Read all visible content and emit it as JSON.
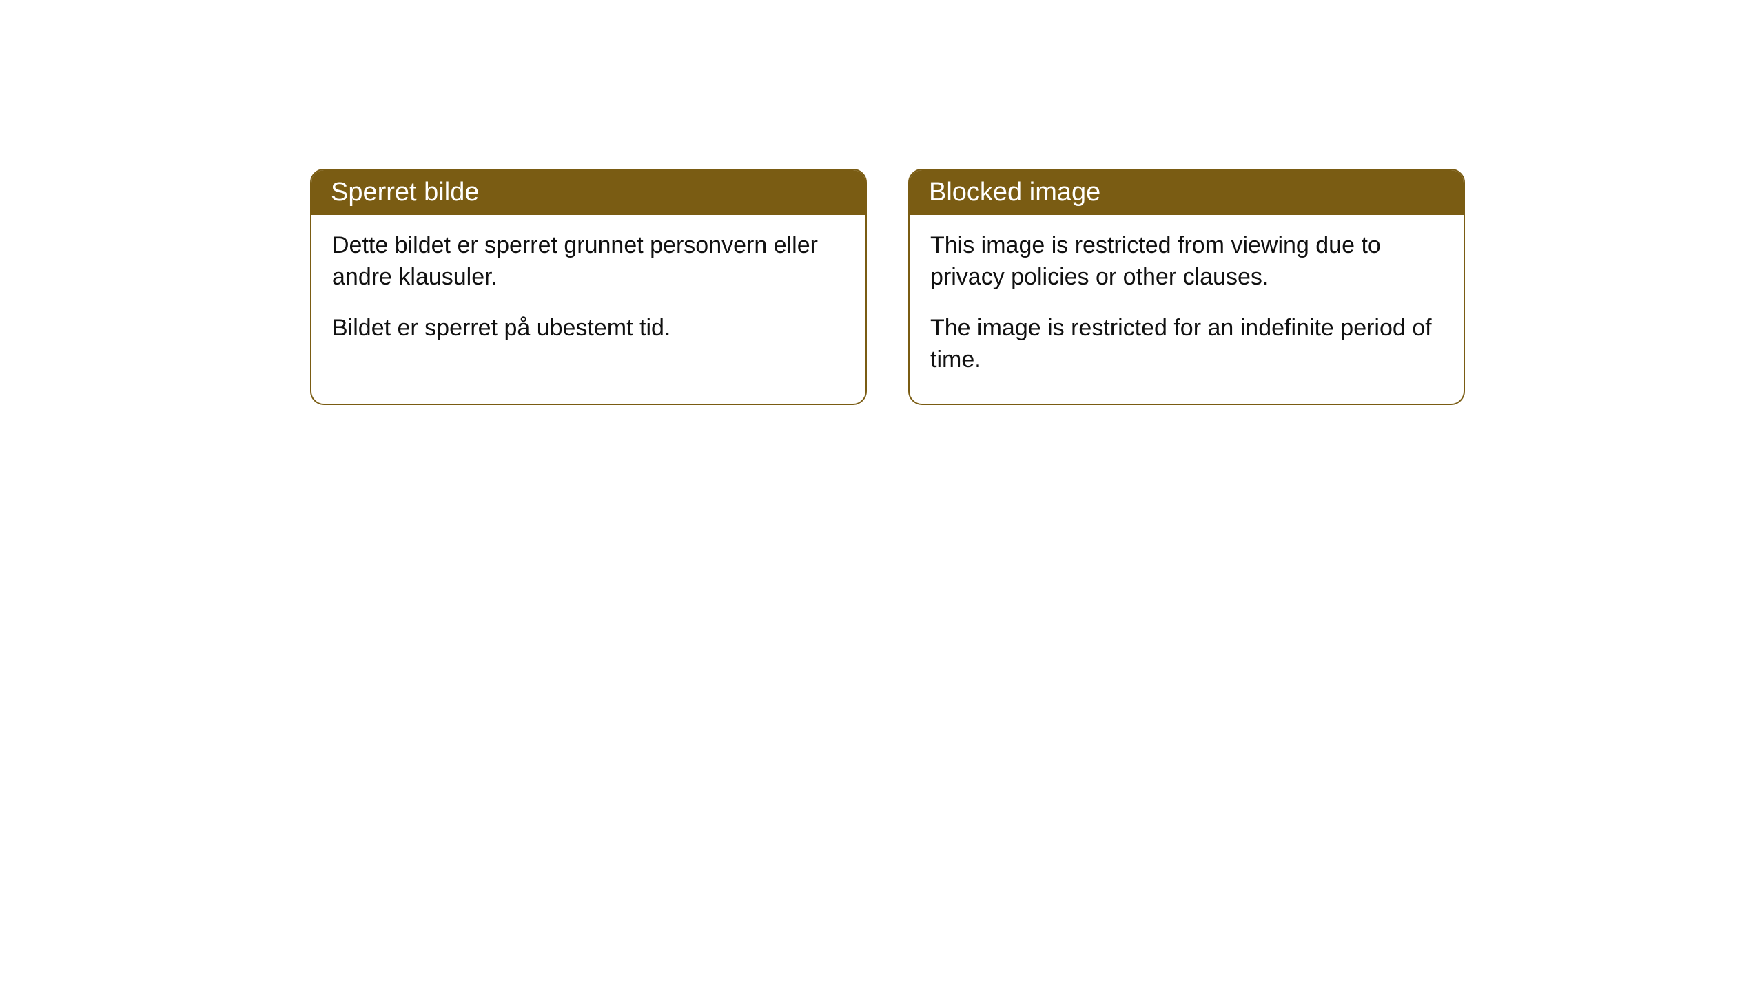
{
  "cards": [
    {
      "title": "Sperret bilde",
      "paragraph1": "Dette bildet er sperret grunnet personvern eller andre klausuler.",
      "paragraph2": "Bildet er sperret på ubestemt tid."
    },
    {
      "title": "Blocked image",
      "paragraph1": "This image is restricted from viewing due to privacy policies or other clauses.",
      "paragraph2": "The image is restricted for an indefinite period of time."
    }
  ],
  "style": {
    "header_background_color": "#7a5c13",
    "header_text_color": "#ffffff",
    "border_color": "#7a5c13",
    "body_text_color": "#111111",
    "page_background_color": "#ffffff",
    "border_radius": 20,
    "title_fontsize": 38,
    "body_fontsize": 34
  }
}
